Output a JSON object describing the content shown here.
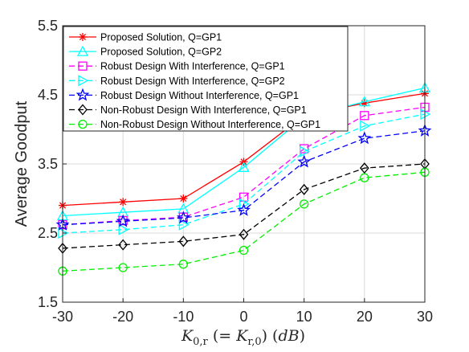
{
  "chart_data": {
    "type": "line",
    "xlabel": "K_{0,r} (= K_{r,0}) (dB)",
    "ylabel": "Average Goodput",
    "x": [
      -30,
      -20,
      -10,
      0,
      10,
      20,
      30
    ],
    "xticks": [
      "-30",
      "-20",
      "-10",
      "0",
      "10",
      "20",
      "30"
    ],
    "yticks": [
      "1.5",
      "2.5",
      "3.5",
      "4.5",
      "5.5"
    ],
    "xlim": [
      -30,
      30
    ],
    "ylim": [
      1.5,
      5.5
    ],
    "grid": true,
    "legend_placement": "top-left",
    "series": [
      {
        "name": "Proposed Solution, Q=GP1",
        "color": "#ff0000",
        "dash": "solid",
        "marker": "asterisk",
        "values": [
          2.9,
          2.95,
          3.0,
          3.53,
          4.2,
          4.38,
          4.52
        ]
      },
      {
        "name": "Proposed Solution, Q=GP2",
        "color": "#00ffff",
        "dash": "solid",
        "marker": "triangle-up",
        "values": [
          2.75,
          2.8,
          2.85,
          3.45,
          4.18,
          4.4,
          4.6
        ]
      },
      {
        "name": "Robust Design With Interference, Q=GP1",
        "color": "#ff00ff",
        "dash": "dashed",
        "marker": "square",
        "values": [
          2.62,
          2.68,
          2.73,
          3.02,
          3.72,
          4.2,
          4.32
        ]
      },
      {
        "name": "Robust Design With Interference, Q=GP2",
        "color": "#00ffff",
        "dash": "dashed",
        "marker": "triangle-right",
        "values": [
          2.5,
          2.55,
          2.62,
          2.92,
          3.68,
          4.05,
          4.22
        ]
      },
      {
        "name": "Robust Design Without Interference, Q=GP1",
        "color": "#0000ff",
        "dash": "dashed",
        "marker": "pentagram",
        "values": [
          2.62,
          2.67,
          2.72,
          2.83,
          3.53,
          3.87,
          3.98
        ]
      },
      {
        "name": "Non-Robust Design With Interference, Q=GP1",
        "color": "#000000",
        "dash": "dashed",
        "marker": "diamond",
        "values": [
          2.28,
          2.33,
          2.38,
          2.48,
          3.13,
          3.44,
          3.5
        ]
      },
      {
        "name": "Non-Robust Design Without Interference, Q=GP1",
        "color": "#00ee00",
        "dash": "dashed",
        "marker": "circle",
        "values": [
          1.95,
          2.0,
          2.05,
          2.25,
          2.92,
          3.3,
          3.38
        ]
      }
    ]
  }
}
